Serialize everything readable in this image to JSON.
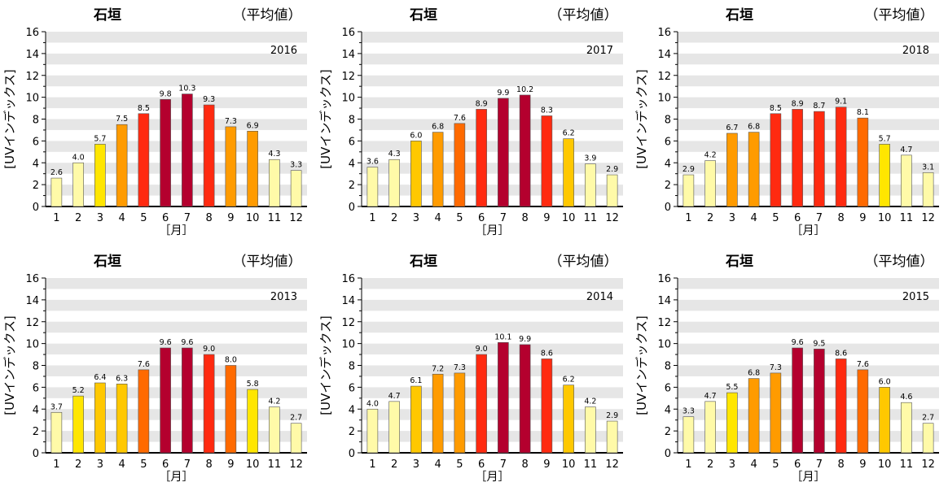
{
  "colors": {
    "band": "#e6e6e6",
    "axis": "#000000",
    "bar_outline": "#555555",
    "level_1": "#fffaa8",
    "level_2": "#ffe600",
    "level_3": "#ffc800",
    "level_4": "#ff9b00",
    "level_5": "#ff6a00",
    "level_6": "#ff2a10",
    "level_7": "#b4002e"
  },
  "chart_data": [
    {
      "type": "bar",
      "title": "石垣",
      "subtitle": "（平均値）",
      "year_label": "2016",
      "ylabel": "[UVインデックス]",
      "xlabel": "［月］",
      "categories": [
        "1",
        "2",
        "3",
        "4",
        "5",
        "6",
        "7",
        "8",
        "9",
        "10",
        "11",
        "12"
      ],
      "values": [
        2.6,
        4.0,
        5.7,
        7.5,
        8.5,
        9.8,
        10.3,
        9.3,
        7.3,
        6.9,
        4.3,
        3.3
      ],
      "value_labels": [
        "2.6",
        "4.0",
        "5.7",
        "7.5",
        "8.5",
        "9.8",
        "10.3",
        "9.3",
        "7.3",
        "6.9",
        "4.3",
        "3.3"
      ],
      "ylim": [
        0,
        16
      ],
      "y_ticks": [
        "0",
        "2",
        "4",
        "6",
        "8",
        "10",
        "12",
        "14",
        "16"
      ]
    },
    {
      "type": "bar",
      "title": "石垣",
      "subtitle": "（平均値）",
      "year_label": "2017",
      "ylabel": "[UVインデックス]",
      "xlabel": "［月］",
      "categories": [
        "1",
        "2",
        "3",
        "4",
        "5",
        "6",
        "7",
        "8",
        "9",
        "10",
        "11",
        "12"
      ],
      "values": [
        3.6,
        4.3,
        6.0,
        6.8,
        7.6,
        8.9,
        9.9,
        10.2,
        8.3,
        6.2,
        3.9,
        2.9
      ],
      "value_labels": [
        "3.6",
        "4.3",
        "6.0",
        "6.8",
        "7.6",
        "8.9",
        "9.9",
        "10.2",
        "8.3",
        "6.2",
        "3.9",
        "2.9"
      ],
      "ylim": [
        0,
        16
      ],
      "y_ticks": [
        "0",
        "2",
        "4",
        "6",
        "8",
        "10",
        "12",
        "14",
        "16"
      ]
    },
    {
      "type": "bar",
      "title": "石垣",
      "subtitle": "（平均値）",
      "year_label": "2018",
      "ylabel": "[UVインデックス]",
      "xlabel": "［月］",
      "categories": [
        "1",
        "2",
        "3",
        "4",
        "5",
        "6",
        "7",
        "8",
        "9",
        "10",
        "11",
        "12"
      ],
      "values": [
        2.9,
        4.2,
        6.7,
        6.8,
        8.5,
        8.9,
        8.7,
        9.1,
        8.1,
        5.7,
        4.7,
        3.1
      ],
      "value_labels": [
        "2.9",
        "4.2",
        "6.7",
        "6.8",
        "8.5",
        "8.9",
        "8.7",
        "9.1",
        "8.1",
        "5.7",
        "4.7",
        "3.1"
      ],
      "ylim": [
        0,
        16
      ],
      "y_ticks": [
        "0",
        "2",
        "4",
        "6",
        "8",
        "10",
        "12",
        "14",
        "16"
      ]
    },
    {
      "type": "bar",
      "title": "石垣",
      "subtitle": "（平均値）",
      "year_label": "2013",
      "ylabel": "[UVインデックス]",
      "xlabel": "［月］",
      "categories": [
        "1",
        "2",
        "3",
        "4",
        "5",
        "6",
        "7",
        "8",
        "9",
        "10",
        "11",
        "12"
      ],
      "values": [
        3.7,
        5.2,
        6.4,
        6.3,
        7.6,
        9.6,
        9.6,
        9.0,
        8.0,
        5.8,
        4.2,
        2.7
      ],
      "value_labels": [
        "3.7",
        "5.2",
        "6.4",
        "6.3",
        "7.6",
        "9.6",
        "9.6",
        "9.0",
        "8.0",
        "5.8",
        "4.2",
        "2.7"
      ],
      "ylim": [
        0,
        16
      ],
      "y_ticks": [
        "0",
        "2",
        "4",
        "6",
        "8",
        "10",
        "12",
        "14",
        "16"
      ]
    },
    {
      "type": "bar",
      "title": "石垣",
      "subtitle": "（平均値）",
      "year_label": "2014",
      "ylabel": "[UVインデックス]",
      "xlabel": "［月］",
      "categories": [
        "1",
        "2",
        "3",
        "4",
        "5",
        "6",
        "7",
        "8",
        "9",
        "10",
        "11",
        "12"
      ],
      "values": [
        4.0,
        4.7,
        6.1,
        7.2,
        7.3,
        9.0,
        10.1,
        9.9,
        8.6,
        6.2,
        4.2,
        2.9
      ],
      "value_labels": [
        "4.0",
        "4.7",
        "6.1",
        "7.2",
        "7.3",
        "9.0",
        "10.1",
        "9.9",
        "8.6",
        "6.2",
        "4.2",
        "2.9"
      ],
      "ylim": [
        0,
        16
      ],
      "y_ticks": [
        "0",
        "2",
        "4",
        "6",
        "8",
        "10",
        "12",
        "14",
        "16"
      ]
    },
    {
      "type": "bar",
      "title": "石垣",
      "subtitle": "（平均値）",
      "year_label": "2015",
      "ylabel": "[UVインデックス]",
      "xlabel": "［月］",
      "categories": [
        "1",
        "2",
        "3",
        "4",
        "5",
        "6",
        "7",
        "8",
        "9",
        "10",
        "11",
        "12"
      ],
      "values": [
        3.3,
        4.7,
        5.5,
        6.8,
        7.3,
        9.6,
        9.5,
        8.6,
        7.6,
        6.0,
        4.6,
        2.7
      ],
      "value_labels": [
        "3.3",
        "4.7",
        "5.5",
        "6.8",
        "7.3",
        "9.6",
        "9.5",
        "8.6",
        "7.6",
        "6.0",
        "4.6",
        "2.7"
      ],
      "ylim": [
        0,
        16
      ],
      "y_ticks": [
        "0",
        "2",
        "4",
        "6",
        "8",
        "10",
        "12",
        "14",
        "16"
      ]
    }
  ]
}
